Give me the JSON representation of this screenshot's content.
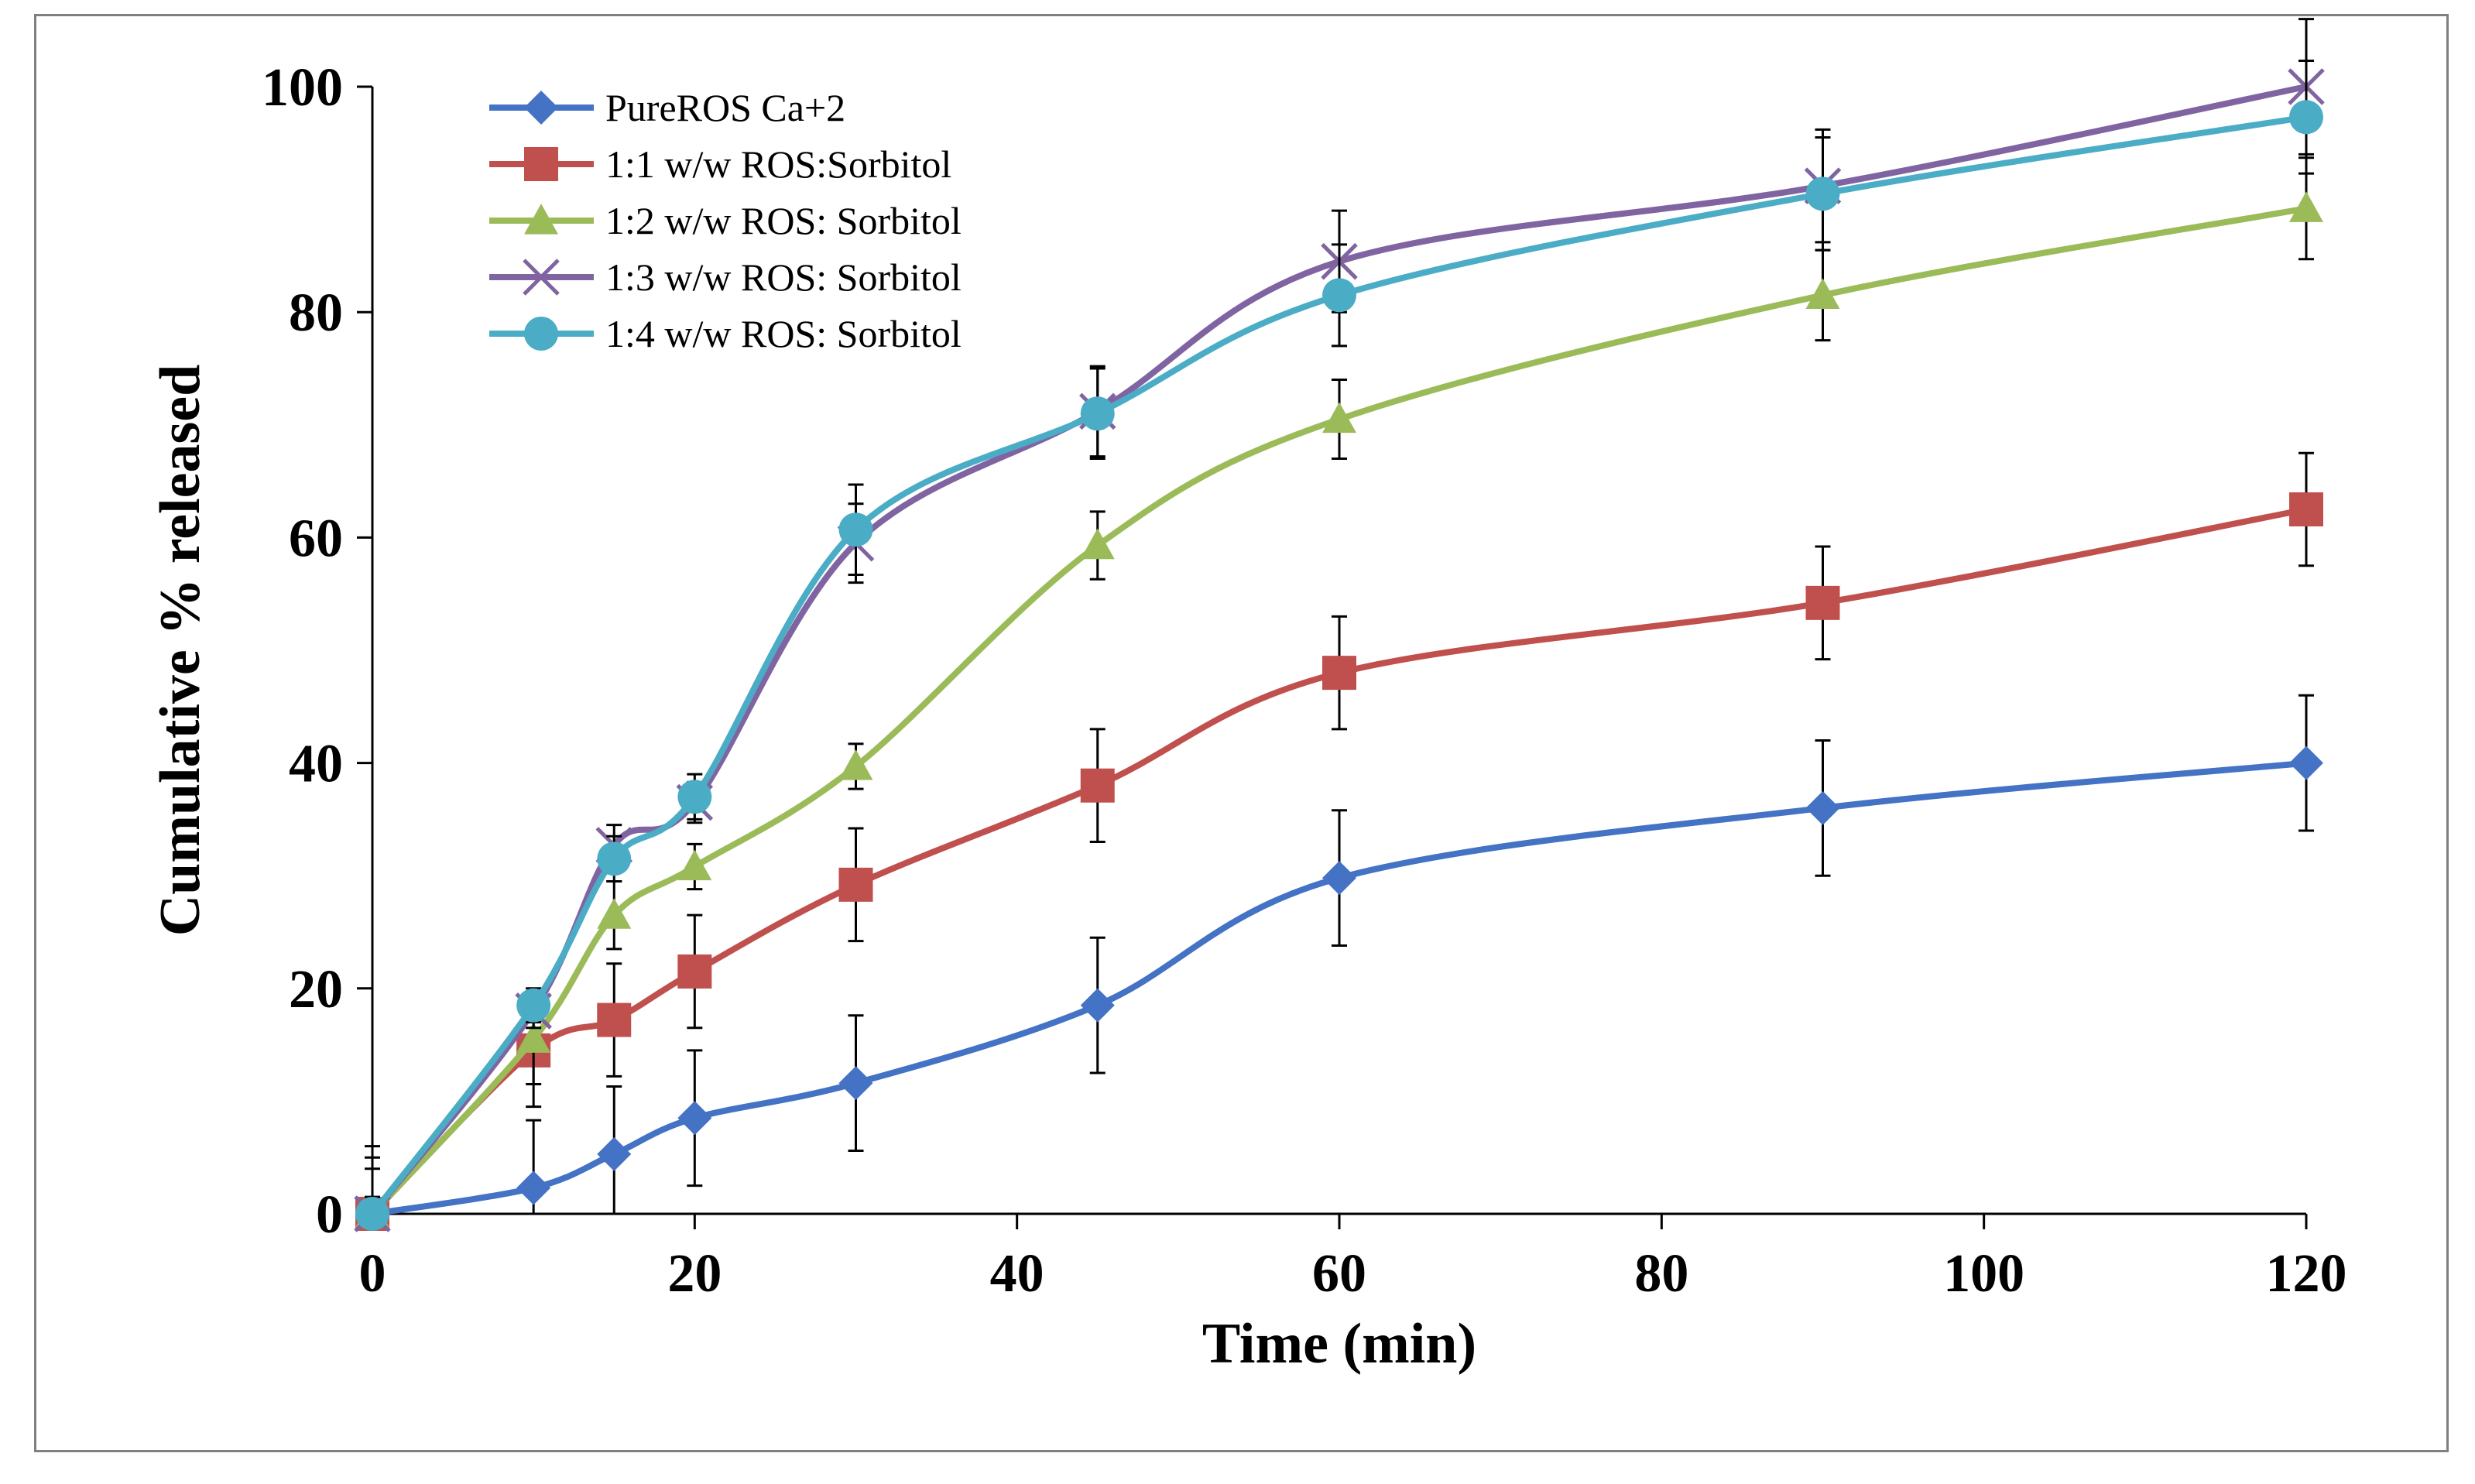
{
  "chart_data": {
    "type": "line",
    "title": "",
    "xlabel": "Time (min)",
    "ylabel": "Cumulative % released",
    "xlim": [
      0,
      120
    ],
    "ylim": [
      0,
      100
    ],
    "xticks": [
      0,
      20,
      40,
      60,
      80,
      100,
      120
    ],
    "yticks": [
      0,
      20,
      40,
      60,
      80,
      100
    ],
    "x_tick_labels": [
      "0",
      "20",
      "40",
      "60",
      "80",
      "100",
      "120"
    ],
    "y_tick_labels": [
      "0",
      "20",
      "40",
      "60",
      "80",
      "100"
    ],
    "grid": false,
    "legend_position": "top-left",
    "x": [
      0,
      10,
      15,
      20,
      30,
      45,
      60,
      90,
      120
    ],
    "series": [
      {
        "name": "PureROS Ca+2",
        "color": "#4472C4",
        "marker": "diamond",
        "values": [
          0,
          2.3,
          5.3,
          8.5,
          11.6,
          18.5,
          29.8,
          36,
          40
        ],
        "errors": [
          6,
          6,
          6,
          6,
          6,
          6,
          6,
          6,
          6
        ]
      },
      {
        "name": "1:1 w/w ROS:Sorbitol",
        "color": "#C0504D",
        "marker": "square",
        "values": [
          0,
          14.5,
          17.2,
          21.5,
          29.2,
          38,
          48,
          54.2,
          62.5
        ],
        "errors": [
          5,
          5,
          5,
          5,
          5,
          5,
          5,
          5,
          5
        ]
      },
      {
        "name": "1:2 w/w ROS: Sorbitol",
        "color": "#9BBB59",
        "marker": "triangle",
        "values": [
          0,
          15.5,
          26.5,
          30.8,
          39.7,
          59.3,
          70.5,
          81.5,
          89.2
        ],
        "errors": [
          4,
          4,
          3,
          2,
          2,
          3,
          3.5,
          4,
          4.5
        ]
      },
      {
        "name": "1:3 w/w ROS: Sorbitol",
        "color": "#8064A2",
        "marker": "x",
        "values": [
          0,
          18,
          32.7,
          36.5,
          59.5,
          71.2,
          84.5,
          91.2,
          100
        ],
        "errors": [
          1.5,
          1.5,
          1.8,
          1.8,
          3.5,
          4,
          4.5,
          5,
          6
        ]
      },
      {
        "name": "1:4 w/w ROS: Sorbitol",
        "color": "#4BACC6",
        "marker": "circle",
        "values": [
          0,
          18.5,
          31.5,
          37,
          60.7,
          71,
          81.5,
          90.5,
          97.3
        ],
        "errors": [
          1,
          1.5,
          2,
          2,
          4,
          4,
          4.5,
          5,
          5
        ]
      }
    ]
  }
}
